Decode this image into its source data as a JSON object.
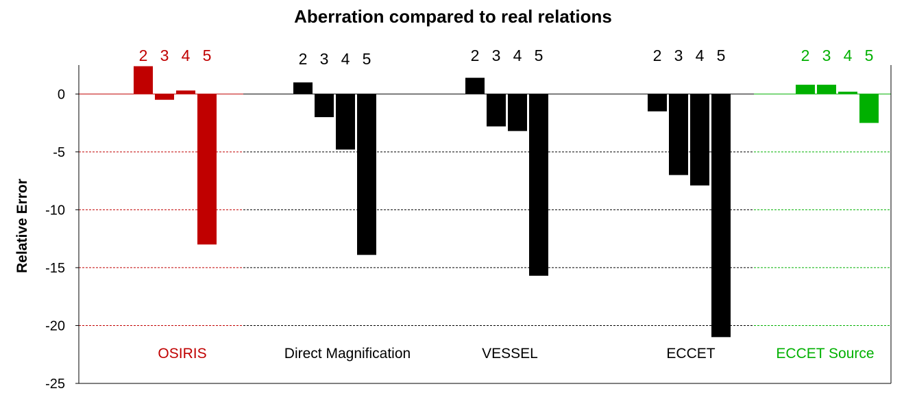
{
  "chart_data": {
    "type": "bar",
    "title": "Aberration compared to real relations",
    "ylabel": "Relative Error",
    "ylim": [
      -25,
      2.5
    ],
    "yticks": [
      0,
      -5,
      -10,
      -15,
      -20,
      -25
    ],
    "yticks_labels": [
      "0",
      "-5",
      "-10",
      "-15",
      "-20",
      "-25"
    ],
    "grid": "dashed horizontal lines colored per group",
    "groups": [
      {
        "name": "OSIRIS",
        "color": "#C00000",
        "categories": [
          "2",
          "3",
          "4",
          "5"
        ],
        "values": [
          2.4,
          -0.5,
          0.3,
          -13.0
        ]
      },
      {
        "name": "Direct Magnification",
        "color": "#000000",
        "categories": [
          "2",
          "3",
          "4",
          "5"
        ],
        "values": [
          1.0,
          -2.0,
          -4.8,
          -13.9
        ]
      },
      {
        "name": "VESSEL",
        "color": "#000000",
        "categories": [
          "2",
          "3",
          "4",
          "5"
        ],
        "values": [
          1.4,
          -2.8,
          -3.2,
          -15.7
        ]
      },
      {
        "name": "ECCET",
        "color": "#000000",
        "categories": [
          "2",
          "3",
          "4",
          "5"
        ],
        "values": [
          -1.5,
          -7.0,
          -7.9,
          -21.0
        ]
      },
      {
        "name": "ECCET Source",
        "color": "#00B000",
        "categories": [
          "2",
          "3",
          "4",
          "5"
        ],
        "values": [
          0.8,
          0.8,
          0.2,
          -2.5
        ]
      }
    ]
  }
}
